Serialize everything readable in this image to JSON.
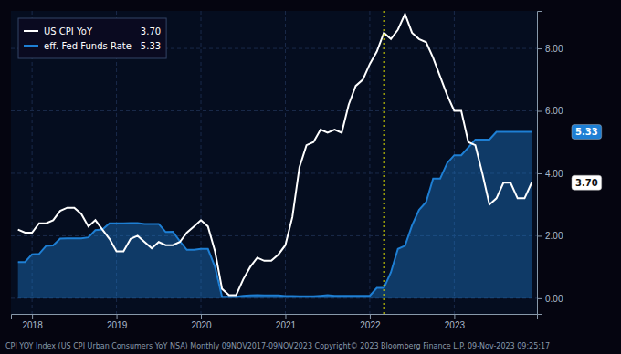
{
  "chart_data": {
    "type": "line",
    "footer": "CPI YOY Index (US CPI Urban Consumers YoY NSA)  Monthly 09NOV2017-09NOV2023      Copyright© 2023 Bloomberg Finance L.P.      09-Nov-2023 09:25:17",
    "x": [
      2017.833,
      2017.917,
      2018.0,
      2018.083,
      2018.167,
      2018.25,
      2018.333,
      2018.417,
      2018.5,
      2018.583,
      2018.667,
      2018.75,
      2018.833,
      2018.917,
      2019.0,
      2019.083,
      2019.167,
      2019.25,
      2019.333,
      2019.417,
      2019.5,
      2019.583,
      2019.667,
      2019.75,
      2019.833,
      2019.917,
      2020.0,
      2020.083,
      2020.167,
      2020.25,
      2020.333,
      2020.417,
      2020.5,
      2020.583,
      2020.667,
      2020.75,
      2020.833,
      2020.917,
      2021.0,
      2021.083,
      2021.167,
      2021.25,
      2021.333,
      2021.417,
      2021.5,
      2021.583,
      2021.667,
      2021.75,
      2021.833,
      2021.917,
      2022.0,
      2022.083,
      2022.167,
      2022.25,
      2022.333,
      2022.417,
      2022.5,
      2022.583,
      2022.667,
      2022.75,
      2022.833,
      2022.917,
      2023.0,
      2023.083,
      2023.167,
      2023.25,
      2023.333,
      2023.417,
      2023.5,
      2023.583,
      2023.667,
      2023.75,
      2023.833,
      2023.917
    ],
    "series": [
      {
        "name": "US CPI YoY",
        "color": "#ffffff",
        "type": "line",
        "values": [
          2.2,
          2.1,
          2.1,
          2.4,
          2.4,
          2.5,
          2.8,
          2.9,
          2.9,
          2.7,
          2.3,
          2.5,
          2.2,
          1.9,
          1.5,
          1.5,
          1.9,
          2.0,
          1.8,
          1.6,
          1.8,
          1.7,
          1.7,
          1.8,
          2.1,
          2.3,
          2.5,
          2.3,
          1.5,
          0.3,
          0.1,
          0.1,
          0.6,
          1.0,
          1.3,
          1.2,
          1.2,
          1.4,
          1.7,
          2.6,
          4.2,
          4.9,
          5.0,
          5.4,
          5.3,
          5.4,
          5.3,
          6.2,
          6.8,
          7.0,
          7.5,
          7.9,
          8.5,
          8.3,
          8.6,
          9.1,
          8.5,
          8.3,
          8.2,
          7.7,
          7.1,
          6.5,
          6.0,
          6.0,
          5.0,
          4.9,
          4.0,
          3.0,
          3.2,
          3.7,
          3.7,
          3.2,
          3.2,
          3.7
        ]
      },
      {
        "name": "eff. Fed Funds Rate",
        "color": "#1e7fd4",
        "type": "area",
        "values": [
          1.16,
          1.16,
          1.41,
          1.42,
          1.68,
          1.69,
          1.91,
          1.92,
          1.92,
          1.92,
          1.95,
          2.18,
          2.2,
          2.4,
          2.4,
          2.4,
          2.41,
          2.41,
          2.38,
          2.38,
          2.38,
          2.12,
          2.13,
          1.83,
          1.55,
          1.55,
          1.58,
          1.58,
          1.0,
          0.05,
          0.05,
          0.05,
          0.08,
          0.09,
          0.1,
          0.09,
          0.09,
          0.09,
          0.07,
          0.07,
          0.06,
          0.06,
          0.06,
          0.08,
          0.1,
          0.08,
          0.08,
          0.08,
          0.08,
          0.08,
          0.08,
          0.33,
          0.33,
          0.83,
          1.58,
          1.68,
          2.33,
          2.83,
          3.08,
          3.83,
          3.83,
          4.33,
          4.58,
          4.58,
          4.83,
          5.08,
          5.08,
          5.08,
          5.33,
          5.33,
          5.33,
          5.33,
          5.33,
          5.33
        ]
      }
    ],
    "annotations": [
      {
        "text": "3.70",
        "y": 3.7,
        "color": "#ffffff"
      },
      {
        "text": "5.33",
        "y": 5.33,
        "color": "#1e7fd4"
      }
    ],
    "reference_lines": [
      {
        "x": 2022.17,
        "color": "#e0e000",
        "line_style": "dotted"
      }
    ],
    "xlim": [
      2017.75,
      2023.98
    ],
    "xticks": [
      2018,
      2019,
      2020,
      2021,
      2022,
      2023
    ],
    "ylim": [
      -0.5,
      9.2
    ],
    "yticks": [
      {
        "value": 0.0,
        "label": "0.00"
      },
      {
        "value": 2.0,
        "label": "2.00"
      },
      {
        "value": 4.0,
        "label": "4.00"
      },
      {
        "value": 6.0,
        "label": "6.00"
      },
      {
        "value": 8.0,
        "label": "8.00"
      }
    ],
    "grid": true,
    "legend": "top-left"
  }
}
